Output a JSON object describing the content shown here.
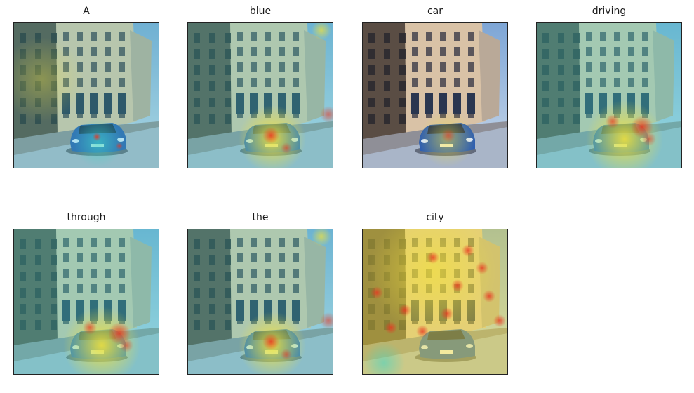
{
  "figure": {
    "panels": [
      {
        "word": "A",
        "heat": "diffuse"
      },
      {
        "word": "blue",
        "heat": "car"
      },
      {
        "word": "car",
        "heat": "car-light"
      },
      {
        "word": "driving",
        "heat": "car-rear"
      },
      {
        "word": "through",
        "heat": "car-rear"
      },
      {
        "word": "the",
        "heat": "car"
      },
      {
        "word": "city",
        "heat": "buildings"
      }
    ]
  },
  "colors": {
    "sky": "#7ea6d6",
    "building_light": "#d9c2a6",
    "building_dark": "#5a4d44",
    "road": "#a9b5c8",
    "car": "#2f5fb0",
    "heat_low": "#3fd6c8",
    "heat_mid": "#f3e23a",
    "heat_high": "#e8341f"
  }
}
